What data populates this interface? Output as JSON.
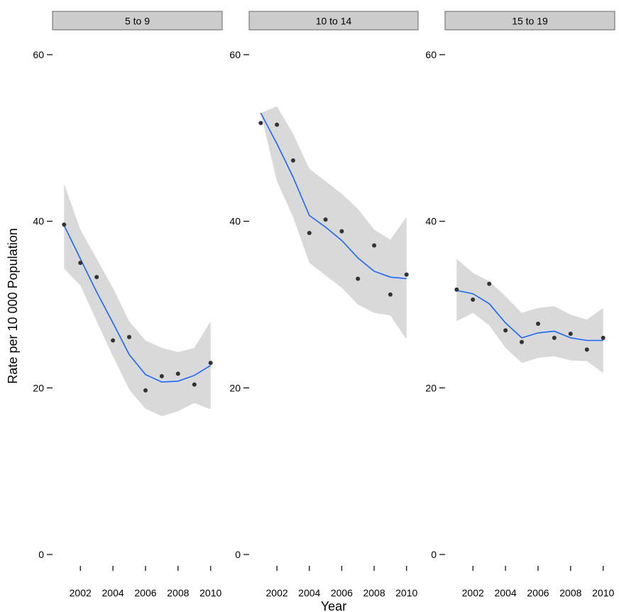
{
  "chart_data": {
    "type": "scatter",
    "xlabel": "Year",
    "ylabel": "Rate per 10 000 Population",
    "x_ticks": [
      2002,
      2004,
      2006,
      2008,
      2010
    ],
    "y_ticks": [
      0,
      20,
      40,
      60
    ],
    "xlim": [
      2000.9,
      2010.1
    ],
    "ylim": [
      0,
      60
    ],
    "colors": {
      "smooth_line": "#1a66ff",
      "ribbon": "#d9d9d9",
      "points": "#333333",
      "strip_fill": "#cccccc"
    },
    "panels": [
      {
        "label": "5 to 9",
        "points": [
          {
            "x": 2001,
            "y": 39.6
          },
          {
            "x": 2002,
            "y": 35.0
          },
          {
            "x": 2003,
            "y": 33.3
          },
          {
            "x": 2004,
            "y": 25.7
          },
          {
            "x": 2005,
            "y": 26.1
          },
          {
            "x": 2006,
            "y": 19.7
          },
          {
            "x": 2007,
            "y": 21.4
          },
          {
            "x": 2008,
            "y": 21.7
          },
          {
            "x": 2009,
            "y": 20.4
          },
          {
            "x": 2010,
            "y": 23.0
          }
        ],
        "smooth": [
          {
            "x": 2001,
            "y": 39.5,
            "lo": 34.3,
            "hi": 44.5
          },
          {
            "x": 2002,
            "y": 35.5,
            "lo": 32.3,
            "hi": 39.0
          },
          {
            "x": 2003,
            "y": 31.5,
            "lo": 28.0,
            "hi": 35.5
          },
          {
            "x": 2004,
            "y": 27.8,
            "lo": 23.8,
            "hi": 32.0
          },
          {
            "x": 2005,
            "y": 24.0,
            "lo": 19.8,
            "hi": 28.0
          },
          {
            "x": 2006,
            "y": 21.6,
            "lo": 17.5,
            "hi": 25.7
          },
          {
            "x": 2007,
            "y": 20.7,
            "lo": 16.6,
            "hi": 24.8
          },
          {
            "x": 2008,
            "y": 20.8,
            "lo": 17.2,
            "hi": 24.3
          },
          {
            "x": 2009,
            "y": 21.5,
            "lo": 18.2,
            "hi": 24.8
          },
          {
            "x": 2010,
            "y": 22.7,
            "lo": 17.4,
            "hi": 28.0
          }
        ]
      },
      {
        "label": "10 to 14",
        "points": [
          {
            "x": 2001,
            "y": 51.8
          },
          {
            "x": 2002,
            "y": 51.6
          },
          {
            "x": 2003,
            "y": 47.3
          },
          {
            "x": 2004,
            "y": 38.6
          },
          {
            "x": 2005,
            "y": 40.2
          },
          {
            "x": 2006,
            "y": 38.8
          },
          {
            "x": 2007,
            "y": 33.1
          },
          {
            "x": 2008,
            "y": 37.1
          },
          {
            "x": 2009,
            "y": 31.2
          },
          {
            "x": 2010,
            "y": 33.6
          }
        ],
        "smooth": [
          {
            "x": 2001,
            "y": 53.0,
            "lo": 53.0,
            "hi": 53.0
          },
          {
            "x": 2002,
            "y": 49.3,
            "lo": 44.8,
            "hi": 53.8
          },
          {
            "x": 2003,
            "y": 45.3,
            "lo": 40.5,
            "hi": 50.5
          },
          {
            "x": 2004,
            "y": 40.7,
            "lo": 35.0,
            "hi": 46.3
          },
          {
            "x": 2005,
            "y": 39.3,
            "lo": 33.5,
            "hi": 44.8
          },
          {
            "x": 2006,
            "y": 37.7,
            "lo": 32.0,
            "hi": 43.3
          },
          {
            "x": 2007,
            "y": 35.6,
            "lo": 30.0,
            "hi": 41.5
          },
          {
            "x": 2008,
            "y": 34.0,
            "lo": 29.0,
            "hi": 39.0
          },
          {
            "x": 2009,
            "y": 33.3,
            "lo": 28.7,
            "hi": 37.8
          },
          {
            "x": 2010,
            "y": 33.1,
            "lo": 25.8,
            "hi": 40.5
          }
        ]
      },
      {
        "label": "15 to 19",
        "points": [
          {
            "x": 2001,
            "y": 31.8
          },
          {
            "x": 2002,
            "y": 30.6
          },
          {
            "x": 2003,
            "y": 32.5
          },
          {
            "x": 2004,
            "y": 26.9
          },
          {
            "x": 2005,
            "y": 25.5
          },
          {
            "x": 2006,
            "y": 27.7
          },
          {
            "x": 2007,
            "y": 26.0
          },
          {
            "x": 2008,
            "y": 26.5
          },
          {
            "x": 2009,
            "y": 24.6
          },
          {
            "x": 2010,
            "y": 26.0
          }
        ],
        "smooth": [
          {
            "x": 2001,
            "y": 31.7,
            "lo": 28.0,
            "hi": 35.5
          },
          {
            "x": 2002,
            "y": 31.3,
            "lo": 29.0,
            "hi": 33.8
          },
          {
            "x": 2003,
            "y": 30.1,
            "lo": 27.5,
            "hi": 32.8
          },
          {
            "x": 2004,
            "y": 27.8,
            "lo": 24.8,
            "hi": 31.0
          },
          {
            "x": 2005,
            "y": 26.0,
            "lo": 23.0,
            "hi": 29.0
          },
          {
            "x": 2006,
            "y": 26.6,
            "lo": 23.6,
            "hi": 29.6
          },
          {
            "x": 2007,
            "y": 26.8,
            "lo": 23.8,
            "hi": 29.8
          },
          {
            "x": 2008,
            "y": 26.0,
            "lo": 23.3,
            "hi": 28.8
          },
          {
            "x": 2009,
            "y": 25.7,
            "lo": 23.2,
            "hi": 28.2
          },
          {
            "x": 2010,
            "y": 25.7,
            "lo": 21.8,
            "hi": 29.6
          }
        ]
      }
    ]
  }
}
